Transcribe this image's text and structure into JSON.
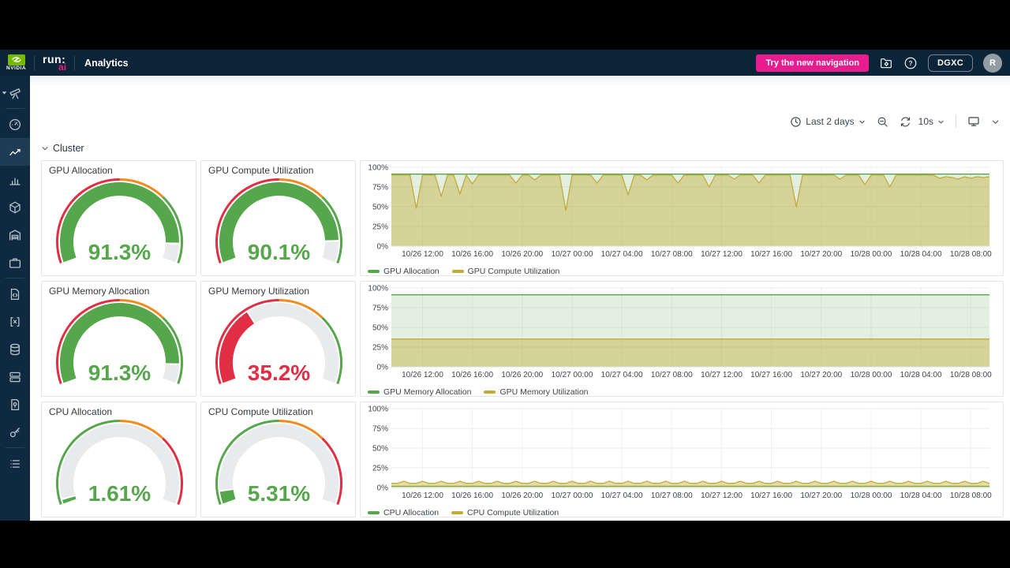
{
  "colors": {
    "navy": "#0c2438",
    "sidebar_navy": "#0e2940",
    "pink": "#e91c8d",
    "nvidia_green": "#76b900",
    "green": "#56a64b",
    "red": "#e02f44",
    "orange": "#f28a1e",
    "yellow": "#c3ab37",
    "gauge_rest": "#e9eaeb"
  },
  "topnav": {
    "brand": "NVIDIA",
    "product_line1": "run:",
    "product_line2": "ai",
    "page_title": "Analytics",
    "new_nav_button": "Try the new navigation",
    "org_button": "DGXC",
    "avatar_initial": "R"
  },
  "sidebar": {
    "groups": [
      [
        "telescope"
      ],
      [
        "dashboard",
        "analytics",
        "bar-chart",
        "cube",
        "depot",
        "briefcase"
      ],
      [
        "file-code",
        "code-brackets",
        "database",
        "servers",
        "doc-pin",
        "key"
      ],
      [
        "rack"
      ]
    ],
    "active": "analytics"
  },
  "toolbar": {
    "time_range": "Last 2 days",
    "refresh_interval": "10s"
  },
  "section": {
    "title": "Cluster"
  },
  "gauges": [
    {
      "title": "GPU Allocation",
      "value": 91.3,
      "label": "91.3%",
      "color": "#56a64b",
      "thresholds": [
        {
          "color": "#e02f44",
          "to": 50
        },
        {
          "color": "#f28a1e",
          "to": 70
        },
        {
          "color": "#56a64b",
          "to": 100
        }
      ]
    },
    {
      "title": "GPU Compute Utilization",
      "value": 90.1,
      "label": "90.1%",
      "color": "#56a64b",
      "thresholds": [
        {
          "color": "#e02f44",
          "to": 50
        },
        {
          "color": "#f28a1e",
          "to": 70
        },
        {
          "color": "#56a64b",
          "to": 100
        }
      ]
    },
    {
      "title": "GPU Memory Allocation",
      "value": 91.3,
      "label": "91.3%",
      "color": "#56a64b",
      "thresholds": [
        {
          "color": "#e02f44",
          "to": 50
        },
        {
          "color": "#f28a1e",
          "to": 70
        },
        {
          "color": "#56a64b",
          "to": 100
        }
      ]
    },
    {
      "title": "GPU Memory Utilization",
      "value": 35.2,
      "label": "35.2%",
      "color": "#e02f44",
      "thresholds": [
        {
          "color": "#e02f44",
          "to": 50
        },
        {
          "color": "#f28a1e",
          "to": 70
        },
        {
          "color": "#56a64b",
          "to": 100
        }
      ]
    },
    {
      "title": "CPU Allocation",
      "value": 1.61,
      "label": "1.61%",
      "color": "#56a64b",
      "thresholds": [
        {
          "color": "#56a64b",
          "to": 50
        },
        {
          "color": "#f28a1e",
          "to": 70
        },
        {
          "color": "#e02f44",
          "to": 100
        }
      ]
    },
    {
      "title": "CPU Compute Utilization",
      "value": 5.31,
      "label": "5.31%",
      "color": "#56a64b",
      "thresholds": [
        {
          "color": "#56a64b",
          "to": 50
        },
        {
          "color": "#f28a1e",
          "to": 70
        },
        {
          "color": "#e02f44",
          "to": 100
        }
      ]
    }
  ],
  "chart_data": [
    {
      "type": "area",
      "ylim": [
        0,
        100
      ],
      "grid": true,
      "legend_position": "bottom",
      "y_ticks": [
        "0%",
        "25%",
        "50%",
        "75%",
        "100%"
      ],
      "x_hours_span": 48,
      "x_tick_hours": [
        2.5,
        6.5,
        10.5,
        14.5,
        18.5,
        22.5,
        26.5,
        30.5,
        34.5,
        38.5,
        42.5,
        46.5
      ],
      "x_ticks": [
        "10/26 12:00",
        "10/26 16:00",
        "10/26 20:00",
        "10/27 00:00",
        "10/27 04:00",
        "10/27 08:00",
        "10/27 12:00",
        "10/27 16:00",
        "10/27 20:00",
        "10/28 00:00",
        "10/28 04:00",
        "10/28 08:00"
      ],
      "series": [
        {
          "name": "GPU Allocation",
          "color": "#56a64b",
          "fill_opacity": 0.17,
          "values": [
            91.3,
            91.3
          ]
        },
        {
          "name": "GPU Compute Utilization",
          "color": "#c3ab37",
          "fill_opacity": 0.42,
          "values": [
            90,
            90,
            90,
            90,
            48,
            90,
            90,
            90,
            63,
            90,
            90,
            66,
            90,
            79,
            90,
            90,
            90,
            90,
            90,
            90,
            80,
            90,
            90,
            84,
            90,
            90,
            90,
            90,
            45,
            90,
            90,
            90,
            90,
            80,
            90,
            90,
            90,
            90,
            65,
            90,
            90,
            84,
            90,
            90,
            90,
            90,
            80,
            90,
            90,
            90,
            90,
            75,
            90,
            90,
            90,
            85,
            90,
            90,
            90,
            80,
            90,
            90,
            90,
            90,
            90,
            50,
            90,
            90,
            90,
            90,
            90,
            90,
            85,
            90,
            90,
            90,
            78,
            90,
            90,
            90,
            75,
            90,
            90,
            90,
            90,
            90,
            90,
            90,
            86,
            88,
            87,
            85,
            88,
            86,
            88,
            87,
            88
          ]
        }
      ]
    },
    {
      "type": "area",
      "ylim": [
        0,
        100
      ],
      "grid": true,
      "legend_position": "bottom",
      "y_ticks": [
        "0%",
        "25%",
        "50%",
        "75%",
        "100%"
      ],
      "x_hours_span": 48,
      "x_tick_hours": [
        2.5,
        6.5,
        10.5,
        14.5,
        18.5,
        22.5,
        26.5,
        30.5,
        34.5,
        38.5,
        42.5,
        46.5
      ],
      "x_ticks": [
        "10/26 12:00",
        "10/26 16:00",
        "10/26 20:00",
        "10/27 00:00",
        "10/27 04:00",
        "10/27 08:00",
        "10/27 12:00",
        "10/27 16:00",
        "10/27 20:00",
        "10/28 00:00",
        "10/28 04:00",
        "10/28 08:00"
      ],
      "series": [
        {
          "name": "GPU Memory Allocation",
          "color": "#56a64b",
          "fill_opacity": 0.17,
          "values": [
            91.3,
            91.3
          ]
        },
        {
          "name": "GPU Memory Utilization",
          "color": "#c3ab37",
          "fill_opacity": 0.42,
          "values": [
            35.2,
            35.2
          ]
        }
      ]
    },
    {
      "type": "area",
      "ylim": [
        0,
        100
      ],
      "grid": true,
      "legend_position": "bottom",
      "y_ticks": [
        "0%",
        "25%",
        "50%",
        "75%",
        "100%"
      ],
      "x_hours_span": 48,
      "x_tick_hours": [
        2.5,
        6.5,
        10.5,
        14.5,
        18.5,
        22.5,
        26.5,
        30.5,
        34.5,
        38.5,
        42.5,
        46.5
      ],
      "x_ticks": [
        "10/26 12:00",
        "10/26 16:00",
        "10/26 20:00",
        "10/27 00:00",
        "10/27 04:00",
        "10/27 08:00",
        "10/27 12:00",
        "10/27 16:00",
        "10/27 20:00",
        "10/28 00:00",
        "10/28 04:00",
        "10/28 08:00"
      ],
      "series": [
        {
          "name": "CPU Allocation",
          "color": "#56a64b",
          "fill_opacity": 0.17,
          "values": [
            1.61,
            1.61
          ]
        },
        {
          "name": "CPU Compute Utilization",
          "color": "#c3ab37",
          "fill_opacity": 0.42,
          "values": [
            5.3,
            5.3,
            8,
            5.3,
            5.3,
            8,
            5.3,
            5.3,
            8,
            5.3,
            5.3,
            8,
            5.3,
            5.3,
            8,
            5.3,
            5.3,
            8,
            5.3,
            5.3,
            8,
            5.3,
            5.3,
            8,
            5.3,
            5.3,
            8,
            5.3,
            5.3,
            8,
            5.3,
            5.3,
            8,
            5.3,
            5.3,
            8,
            5.3,
            5.3,
            8,
            5.3,
            5.3,
            8,
            5.3,
            5.3,
            8,
            5.3,
            5.3,
            8,
            5.3,
            5.3,
            8,
            5.3,
            5.3,
            8,
            5.3,
            5.3,
            8,
            5.3,
            5.3,
            8,
            5.3,
            5.3,
            8,
            5.3,
            5.3,
            8,
            5.3,
            5.3,
            8,
            5.3,
            5.3,
            8,
            5.3,
            5.3,
            8,
            5.3,
            5.3,
            8,
            5.3,
            5.3,
            8,
            5.3,
            5.3,
            8,
            5.3,
            5.3,
            8,
            5.3,
            5.3,
            8,
            5.3,
            5.3,
            8,
            5.3,
            5.3,
            8,
            5.3
          ]
        }
      ]
    }
  ]
}
